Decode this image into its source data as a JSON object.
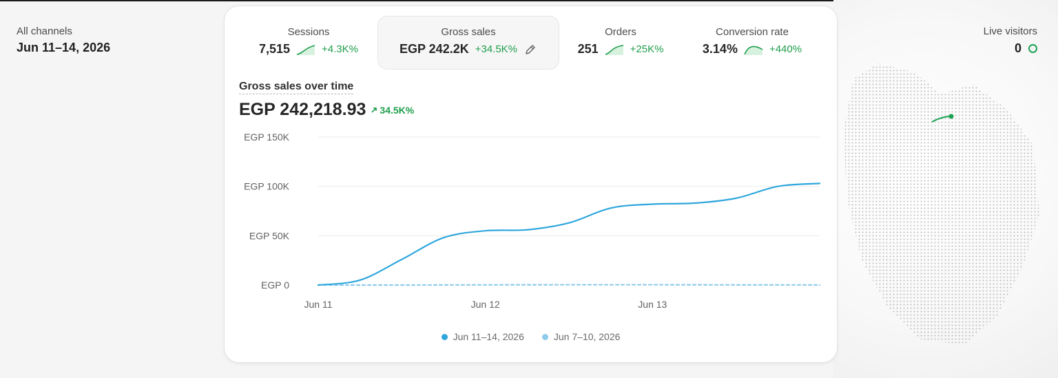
{
  "left": {
    "label": "All channels",
    "value": "Jun 11–14, 2026"
  },
  "live": {
    "label": "Live visitors",
    "value": "0"
  },
  "metrics": [
    {
      "label": "Sessions",
      "value": "7,515",
      "delta": "+4.3K%"
    },
    {
      "label": "Gross sales",
      "value": "EGP 242.2K",
      "delta": "+34.5K%"
    },
    {
      "label": "Orders",
      "value": "251",
      "delta": "+25K%"
    },
    {
      "label": "Conversion rate",
      "value": "3.14%",
      "delta": "+440%"
    }
  ],
  "chart": {
    "title": "Gross sales over time",
    "total": "EGP 242,218.93",
    "change": "34.5K%"
  },
  "colors": {
    "accent_green": "#1f9e4b",
    "series_current": "#2ea6dc",
    "series_previous": "#8fcbea"
  },
  "chart_data": {
    "type": "line",
    "y_ticks": [
      "EGP 150K",
      "EGP 100K",
      "EGP 50K",
      "EGP 0"
    ],
    "y_tick_values": [
      150000,
      100000,
      50000,
      0
    ],
    "x_ticks": [
      "Jun 11",
      "Jun 12",
      "Jun 13"
    ],
    "x_tick_values": [
      0,
      1,
      2
    ],
    "ylim": [
      0,
      150000
    ],
    "xlim": [
      0,
      3
    ],
    "grid": true,
    "series": [
      {
        "name": "Jun 11–14, 2026",
        "color": "#2ea6dc",
        "style": "solid",
        "x": [
          0,
          0.25,
          0.5,
          0.75,
          1.0,
          1.25,
          1.5,
          1.75,
          2.0,
          2.25,
          2.5,
          2.75,
          3.0
        ],
        "y": [
          0,
          5000,
          26000,
          48000,
          55000,
          56000,
          63000,
          78000,
          82000,
          83000,
          88000,
          100000,
          103000
        ]
      },
      {
        "name": "Jun 7–10, 2026",
        "color": "#8fcbea",
        "style": "dashed",
        "x": [
          0,
          0.5,
          1.0,
          1.5,
          2.0,
          2.5,
          3.0
        ],
        "y": [
          0,
          0,
          200,
          300,
          300,
          200,
          100
        ]
      }
    ]
  }
}
